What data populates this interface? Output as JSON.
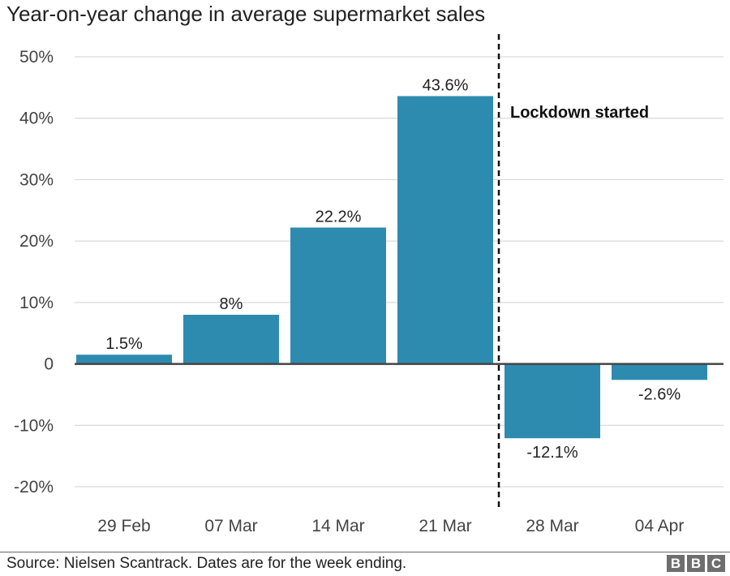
{
  "chart_data": {
    "type": "bar",
    "title": "Year-on-year change in average supermarket sales",
    "categories": [
      "29 Feb",
      "07 Mar",
      "14 Mar",
      "21 Mar",
      "28 Mar",
      "04 Apr"
    ],
    "values": [
      1.5,
      8,
      22.2,
      43.6,
      -12.1,
      -2.6
    ],
    "data_labels": [
      "1.5%",
      "8%",
      "22.2%",
      "43.6%",
      "-12.1%",
      "-2.6%"
    ],
    "yticks": [
      50,
      40,
      30,
      20,
      10,
      0,
      -10,
      -20
    ],
    "ytick_labels": [
      "50%",
      "40%",
      "30%",
      "20%",
      "10%",
      "0",
      "-10%",
      "-20%"
    ],
    "ylim": [
      -20,
      50
    ],
    "xlabel": "",
    "ylabel": "",
    "grid": true,
    "bar_color": "#2e8bb0",
    "annotation": {
      "text": "Lockdown started",
      "between_categories": [
        "21 Mar",
        "28 Mar"
      ],
      "style": "dashed vertical line"
    }
  },
  "footer": {
    "source": "Source: Nielsen Scantrack. Dates are for the week ending.",
    "logo_letters": [
      "B",
      "B",
      "C"
    ]
  }
}
